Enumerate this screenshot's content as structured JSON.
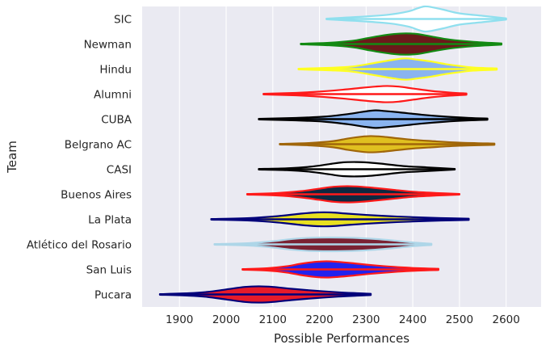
{
  "chart_data": {
    "type": "violin",
    "title": "",
    "xlabel": "Possible Performances",
    "ylabel": "Team",
    "xlim": [
      1820,
      2675
    ],
    "xticks": [
      1900,
      2000,
      2100,
      2200,
      2300,
      2400,
      2500,
      2600
    ],
    "grid": true,
    "background": "#eaeaf2",
    "grid_color": "#ffffff",
    "series": [
      {
        "name": "SIC",
        "min": 2215,
        "max": 2600,
        "fill": "#ffffff",
        "edge": "#8fdfee",
        "profile": [
          [
            2215,
            0.5
          ],
          [
            2250,
            2
          ],
          [
            2300,
            4
          ],
          [
            2350,
            7
          ],
          [
            2390,
            12
          ],
          [
            2410,
            17
          ],
          [
            2425,
            20
          ],
          [
            2440,
            19
          ],
          [
            2465,
            15
          ],
          [
            2500,
            9
          ],
          [
            2550,
            5
          ],
          [
            2600,
            1
          ]
        ]
      },
      {
        "name": "Newman",
        "min": 2160,
        "max": 2590,
        "fill": "#6b1a1a",
        "edge": "#138a13",
        "profile": [
          [
            2160,
            0.5
          ],
          [
            2220,
            2
          ],
          [
            2270,
            5
          ],
          [
            2300,
            9
          ],
          [
            2330,
            13
          ],
          [
            2360,
            16
          ],
          [
            2385,
            17
          ],
          [
            2410,
            16
          ],
          [
            2440,
            12
          ],
          [
            2480,
            7
          ],
          [
            2530,
            3.5
          ],
          [
            2590,
            1
          ]
        ]
      },
      {
        "name": "Hindu",
        "min": 2155,
        "max": 2580,
        "fill": "#8ab4f0",
        "edge": "#ffff22",
        "profile": [
          [
            2155,
            0.5
          ],
          [
            2220,
            2
          ],
          [
            2270,
            4
          ],
          [
            2320,
            10
          ],
          [
            2360,
            15
          ],
          [
            2385,
            17
          ],
          [
            2410,
            15
          ],
          [
            2440,
            12
          ],
          [
            2470,
            8
          ],
          [
            2500,
            5
          ],
          [
            2530,
            2.5
          ],
          [
            2580,
            1
          ]
        ]
      },
      {
        "name": "Alumni",
        "min": 2080,
        "max": 2515,
        "fill": "#ffffff",
        "edge": "#ff1a1a",
        "profile": [
          [
            2080,
            0.5
          ],
          [
            2150,
            2
          ],
          [
            2200,
            4
          ],
          [
            2250,
            7
          ],
          [
            2290,
            10
          ],
          [
            2320,
            12
          ],
          [
            2345,
            13
          ],
          [
            2370,
            12
          ],
          [
            2400,
            9
          ],
          [
            2440,
            5
          ],
          [
            2480,
            2.5
          ],
          [
            2515,
            1
          ]
        ]
      },
      {
        "name": "CUBA",
        "min": 2070,
        "max": 2560,
        "fill": "#8ab4f0",
        "edge": "#000000",
        "profile": [
          [
            2070,
            0.5
          ],
          [
            2150,
            2
          ],
          [
            2210,
            4
          ],
          [
            2260,
            8
          ],
          [
            2295,
            12
          ],
          [
            2320,
            14
          ],
          [
            2340,
            13
          ],
          [
            2370,
            11
          ],
          [
            2420,
            7
          ],
          [
            2470,
            4
          ],
          [
            2520,
            2
          ],
          [
            2560,
            1
          ]
        ]
      },
      {
        "name": "Belgrano AC",
        "min": 2115,
        "max": 2575,
        "fill": "#e0c020",
        "edge": "#a0660a",
        "profile": [
          [
            2115,
            0.5
          ],
          [
            2180,
            2
          ],
          [
            2230,
            5
          ],
          [
            2260,
            9
          ],
          [
            2290,
            12
          ],
          [
            2310,
            13
          ],
          [
            2335,
            12
          ],
          [
            2360,
            10
          ],
          [
            2400,
            7
          ],
          [
            2440,
            5
          ],
          [
            2500,
            2.5
          ],
          [
            2575,
            1
          ]
        ]
      },
      {
        "name": "CASI",
        "min": 2070,
        "max": 2490,
        "fill": "#ffffff",
        "edge": "#000000",
        "profile": [
          [
            2070,
            0.5
          ],
          [
            2130,
            1.5
          ],
          [
            2180,
            4
          ],
          [
            2220,
            8
          ],
          [
            2250,
            11
          ],
          [
            2280,
            11.5
          ],
          [
            2300,
            11
          ],
          [
            2330,
            9
          ],
          [
            2380,
            5
          ],
          [
            2430,
            3
          ],
          [
            2490,
            0.5
          ]
        ]
      },
      {
        "name": "Buenos Aires",
        "min": 2045,
        "max": 2500,
        "fill": "#0e2840",
        "edge": "#ff1a1a",
        "profile": [
          [
            2045,
            0.5
          ],
          [
            2110,
            2
          ],
          [
            2160,
            5
          ],
          [
            2200,
            9
          ],
          [
            2230,
            12
          ],
          [
            2260,
            13
          ],
          [
            2290,
            12
          ],
          [
            2320,
            10
          ],
          [
            2360,
            7
          ],
          [
            2400,
            4
          ],
          [
            2450,
            2
          ],
          [
            2500,
            0.5
          ]
        ]
      },
      {
        "name": "La Plata",
        "min": 1968,
        "max": 2520,
        "fill": "#e8e020",
        "edge": "#00007a",
        "profile": [
          [
            1968,
            0.5
          ],
          [
            2050,
            2
          ],
          [
            2110,
            5
          ],
          [
            2160,
            9
          ],
          [
            2195,
            11
          ],
          [
            2225,
            11
          ],
          [
            2260,
            9
          ],
          [
            2300,
            7
          ],
          [
            2350,
            5
          ],
          [
            2400,
            3.5
          ],
          [
            2460,
            2
          ],
          [
            2520,
            1
          ]
        ]
      },
      {
        "name": "Atlético del Rosario",
        "min": 1975,
        "max": 2440,
        "fill": "#7a2233",
        "edge": "#aed6e8",
        "profile": [
          [
            1975,
            0.5
          ],
          [
            2050,
            2
          ],
          [
            2100,
            5
          ],
          [
            2140,
            8.5
          ],
          [
            2180,
            10.5
          ],
          [
            2220,
            11
          ],
          [
            2270,
            10.5
          ],
          [
            2320,
            8.5
          ],
          [
            2360,
            6
          ],
          [
            2400,
            3
          ],
          [
            2440,
            1
          ]
        ]
      },
      {
        "name": "San Luis",
        "min": 2035,
        "max": 2455,
        "fill": "#2222ee",
        "edge": "#ff1a1a",
        "profile": [
          [
            2035,
            0.5
          ],
          [
            2090,
            2
          ],
          [
            2130,
            5
          ],
          [
            2160,
            9
          ],
          [
            2190,
            12
          ],
          [
            2215,
            13
          ],
          [
            2240,
            12
          ],
          [
            2270,
            10
          ],
          [
            2310,
            7
          ],
          [
            2360,
            4
          ],
          [
            2410,
            2
          ],
          [
            2455,
            1
          ]
        ]
      },
      {
        "name": "Pucara",
        "min": 1858,
        "max": 2310,
        "fill": "#e61a2a",
        "edge": "#00007a",
        "profile": [
          [
            1858,
            0.5
          ],
          [
            1920,
            2
          ],
          [
            1960,
            4
          ],
          [
            2000,
            8
          ],
          [
            2040,
            12
          ],
          [
            2070,
            13
          ],
          [
            2100,
            12
          ],
          [
            2140,
            9
          ],
          [
            2190,
            6
          ],
          [
            2240,
            3.5
          ],
          [
            2280,
            2
          ],
          [
            2310,
            1
          ]
        ]
      }
    ]
  }
}
